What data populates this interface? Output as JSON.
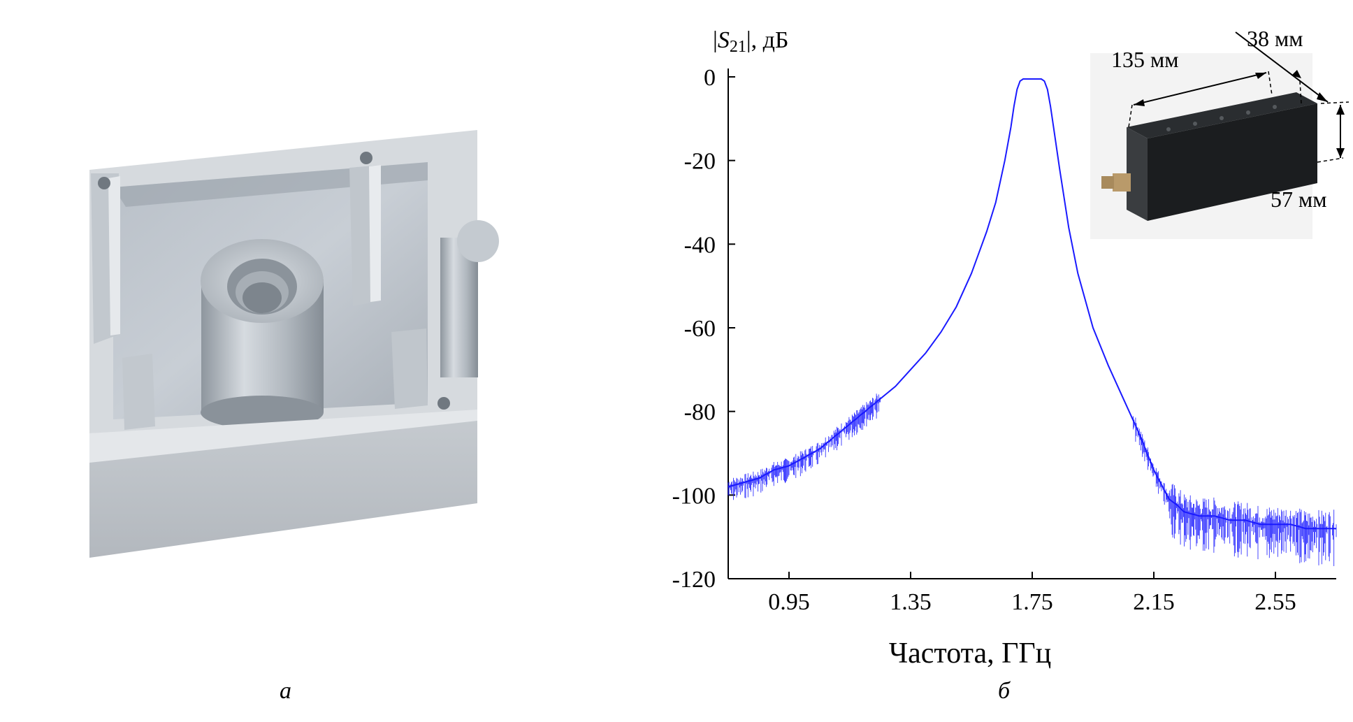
{
  "captions": {
    "left": "а",
    "right": "б"
  },
  "photo": {
    "subject": "machined-aluminum-cavity-housing"
  },
  "chart_data": {
    "type": "line",
    "title": "",
    "xlabel": "Частота, ГГц",
    "ylabel_prefix": "|",
    "ylabel_var": "S",
    "ylabel_sub": "21",
    "ylabel_suffix": "|, дБ",
    "xlim": [
      0.75,
      2.75
    ],
    "ylim": [
      -120,
      2
    ],
    "xticks": [
      0.95,
      1.35,
      1.75,
      2.15,
      2.55
    ],
    "xtick_labels": [
      "0.95",
      "1.35",
      "1.75",
      "2.15",
      "2.55"
    ],
    "yticks": [
      0,
      -20,
      -40,
      -60,
      -80,
      -100,
      -120
    ],
    "ytick_labels": [
      "0",
      "-20",
      "-40",
      "-60",
      "-80",
      "-100",
      "-120"
    ],
    "grid": false,
    "line_color": "#1a1aff",
    "series": [
      {
        "x": [
          0.75,
          0.8,
          0.85,
          0.9,
          0.95,
          1.0,
          1.05,
          1.1,
          1.15,
          1.2,
          1.25,
          1.3,
          1.35,
          1.4,
          1.45,
          1.5,
          1.55,
          1.6,
          1.63,
          1.66,
          1.68,
          1.69,
          1.7,
          1.71,
          1.72,
          1.75,
          1.78,
          1.79,
          1.8,
          1.81,
          1.82,
          1.84,
          1.87,
          1.9,
          1.95,
          2.0,
          2.05,
          2.1,
          2.15,
          2.2,
          2.22,
          2.25,
          2.3,
          2.35,
          2.4,
          2.45,
          2.5,
          2.55,
          2.6,
          2.65,
          2.7,
          2.75
        ],
        "y": [
          -98,
          -97,
          -96,
          -94,
          -93,
          -91,
          -89,
          -86,
          -83,
          -80,
          -77,
          -74,
          -70,
          -66,
          -61,
          -55,
          -47,
          -37,
          -30,
          -20,
          -12,
          -7,
          -3,
          -1,
          -0.5,
          -0.5,
          -0.5,
          -1,
          -3,
          -7,
          -12,
          -22,
          -36,
          -47,
          -60,
          -69,
          -77,
          -85,
          -94,
          -101,
          -102,
          -104,
          -105,
          -105,
          -106,
          -106,
          -107,
          -107,
          -107,
          -108,
          -108,
          -108
        ]
      }
    ],
    "inset": {
      "labels": {
        "length": "135 мм",
        "width": "38 мм",
        "height": "57 мм"
      }
    }
  }
}
